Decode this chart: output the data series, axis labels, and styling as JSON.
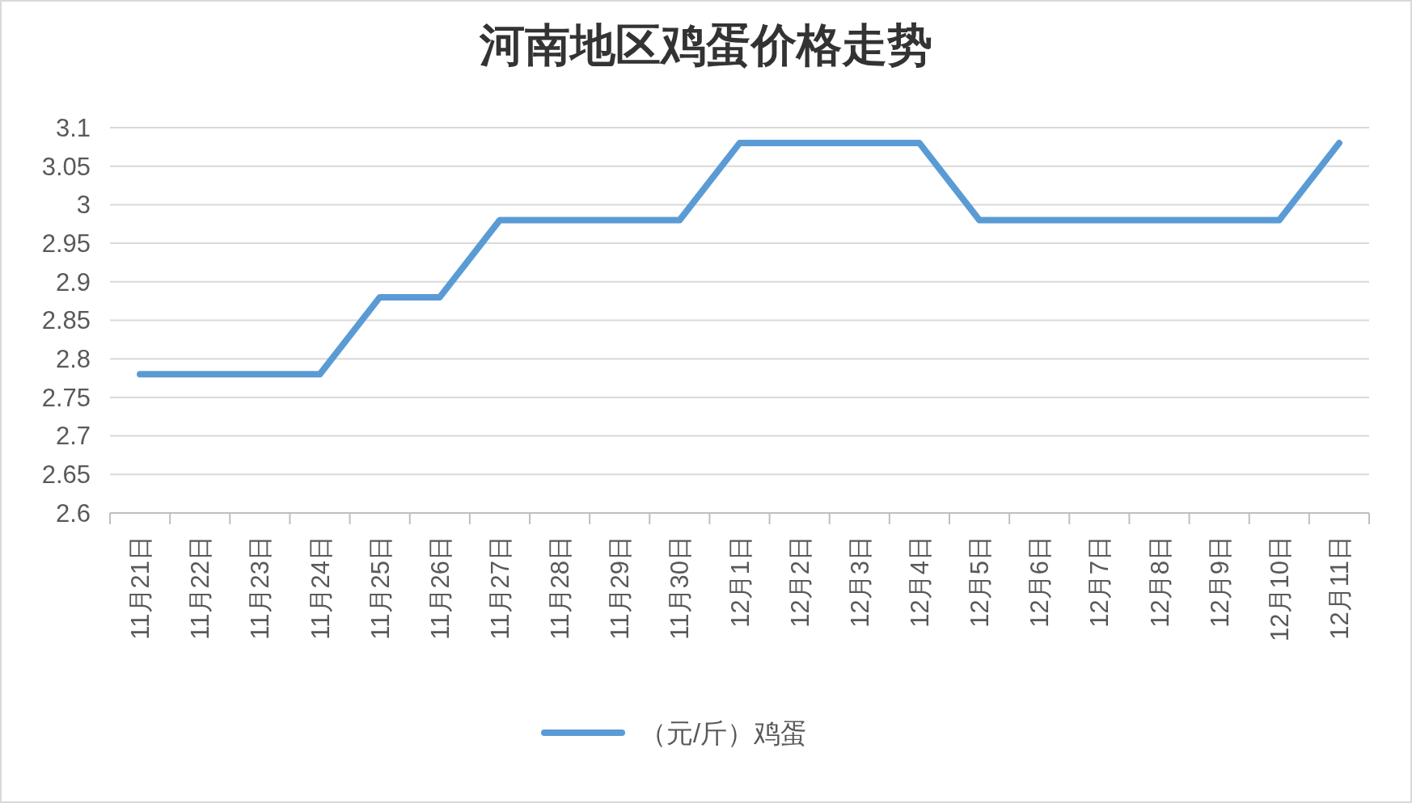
{
  "chart_data": {
    "type": "line",
    "title": "河南地区鸡蛋价格走势",
    "categories": [
      "11月21日",
      "11月22日",
      "11月23日",
      "11月24日",
      "11月25日",
      "11月26日",
      "11月27日",
      "11月28日",
      "11月29日",
      "11月30日",
      "12月1日",
      "12月2日",
      "12月3日",
      "12月4日",
      "12月5日",
      "12月6日",
      "12月7日",
      "12月8日",
      "12月9日",
      "12月10日",
      "12月11日"
    ],
    "series": [
      {
        "name": "（元/斤）鸡蛋",
        "color": "#5b9bd5",
        "values": [
          2.78,
          2.78,
          2.78,
          2.78,
          2.88,
          2.88,
          2.98,
          2.98,
          2.98,
          2.98,
          3.08,
          3.08,
          3.08,
          3.08,
          2.98,
          2.98,
          2.98,
          2.98,
          2.98,
          2.98,
          3.08
        ]
      }
    ],
    "ylim": [
      2.6,
      3.1
    ],
    "yticks": [
      2.6,
      2.65,
      2.7,
      2.75,
      2.8,
      2.85,
      2.9,
      2.95,
      3,
      3.05,
      3.1
    ],
    "grid": "y",
    "legend": "bottom",
    "line_style": "solid"
  }
}
